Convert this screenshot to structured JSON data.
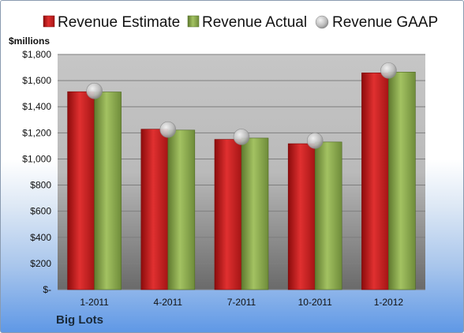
{
  "company": "Big Lots",
  "chart_data": {
    "type": "bar",
    "unit_label": "$millions",
    "categories": [
      "1-2011",
      "4-2011",
      "7-2011",
      "10-2011",
      "1-2012"
    ],
    "series": [
      {
        "name": "Revenue Estimate",
        "kind": "bar",
        "color": "#d42020",
        "values": [
          1515,
          1228,
          1150,
          1117,
          1659
        ]
      },
      {
        "name": "Revenue Actual",
        "kind": "bar",
        "color": "#8fad52",
        "values": [
          1513,
          1221,
          1160,
          1130,
          1665
        ]
      },
      {
        "name": "Revenue GAAP",
        "kind": "marker",
        "color": "#b8b8b8",
        "values": [
          1521,
          1225,
          1169,
          1140,
          1677
        ]
      }
    ],
    "y_ticks": [
      "$-",
      "$200",
      "$400",
      "$600",
      "$800",
      "$1,000",
      "$1,200",
      "$1,400",
      "$1,600",
      "$1,800"
    ],
    "ylim": [
      0,
      1800
    ],
    "grid": true,
    "legend_position": "top"
  }
}
